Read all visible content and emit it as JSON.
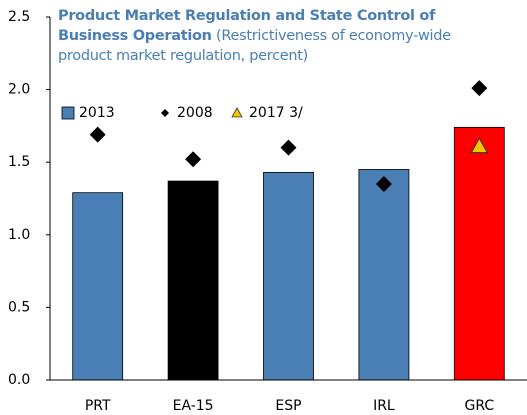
{
  "chart_data": {
    "type": "bar",
    "title": "Product Market Regulation and State Control of Business Operation",
    "subtitle": "(Restrictiveness of economy-wide product market regulation, percent)",
    "categories": [
      "PRT",
      "EA-15",
      "ESP",
      "IRL",
      "GRC"
    ],
    "series": [
      {
        "name": "2013",
        "kind": "bar",
        "color": "#4a7fb5",
        "colors": [
          "#4a7fb5",
          "#000000",
          "#4a7fb5",
          "#4a7fb5",
          "#ff0000"
        ],
        "values": [
          1.29,
          1.37,
          1.43,
          1.45,
          1.74
        ]
      },
      {
        "name": "2008",
        "kind": "diamond",
        "color": "#000000",
        "values": [
          1.69,
          1.52,
          1.6,
          1.35,
          2.01
        ]
      },
      {
        "name": "2017 3/",
        "kind": "triangle",
        "color": "#f5c400",
        "values": [
          null,
          null,
          null,
          null,
          1.61
        ]
      }
    ],
    "ylim": [
      0,
      2.5
    ],
    "yticks": [
      {
        "value": 0,
        "label": "0.0"
      },
      {
        "value": 0.5,
        "label": "0.5"
      },
      {
        "value": 1,
        "label": "1.0"
      },
      {
        "value": 1.5,
        "label": "1.5"
      },
      {
        "value": 2,
        "label": "2.0"
      },
      {
        "value": 2.5,
        "label": "2.5"
      }
    ]
  }
}
